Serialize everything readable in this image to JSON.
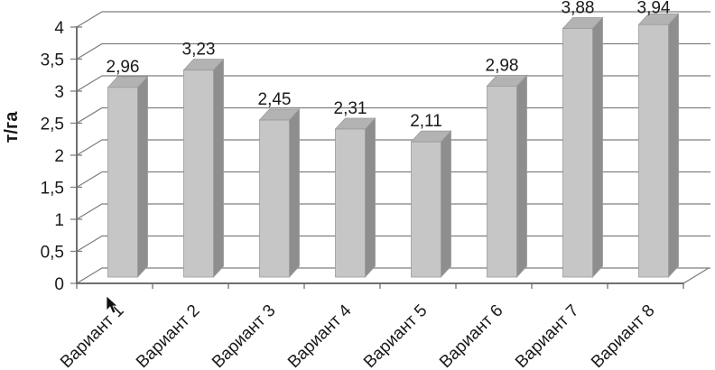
{
  "chart_data": {
    "type": "bar",
    "style": "3d-column",
    "title": "",
    "xlabel": "",
    "ylabel": "т/га",
    "categories": [
      "Вариант 1",
      "Вариант 2",
      "Вариант 3",
      "Вариант 4",
      "Вариант 5",
      "Вариант 6",
      "Вариант 7",
      "Вариант 8"
    ],
    "values": [
      2.96,
      3.23,
      2.45,
      2.31,
      2.11,
      2.98,
      3.88,
      3.94
    ],
    "value_labels": [
      "2,96",
      "3,23",
      "2,45",
      "2,31",
      "2,11",
      "2,98",
      "3,88",
      "3,94"
    ],
    "ytick_labels": [
      "0",
      "0,5",
      "1",
      "1,5",
      "2",
      "2,5",
      "3",
      "3,5",
      "4"
    ],
    "yticks": [
      0,
      0.5,
      1,
      1.5,
      2,
      2.5,
      3,
      3.5,
      4
    ],
    "ylim": [
      0,
      4
    ],
    "grid": true,
    "legend": false,
    "data_labels_position": "outside-end",
    "category_label_rotation_deg": -45,
    "colors": {
      "bar_front": "#c6c6c6",
      "bar_side": "#8e8e8e",
      "bar_top": "#b3b3b3",
      "bar_edge": "#9a9a9a",
      "gridline": "#7f7f7f",
      "axis": "#6f6f6f",
      "text": "#1a1a1a",
      "background": "#ffffff"
    }
  }
}
